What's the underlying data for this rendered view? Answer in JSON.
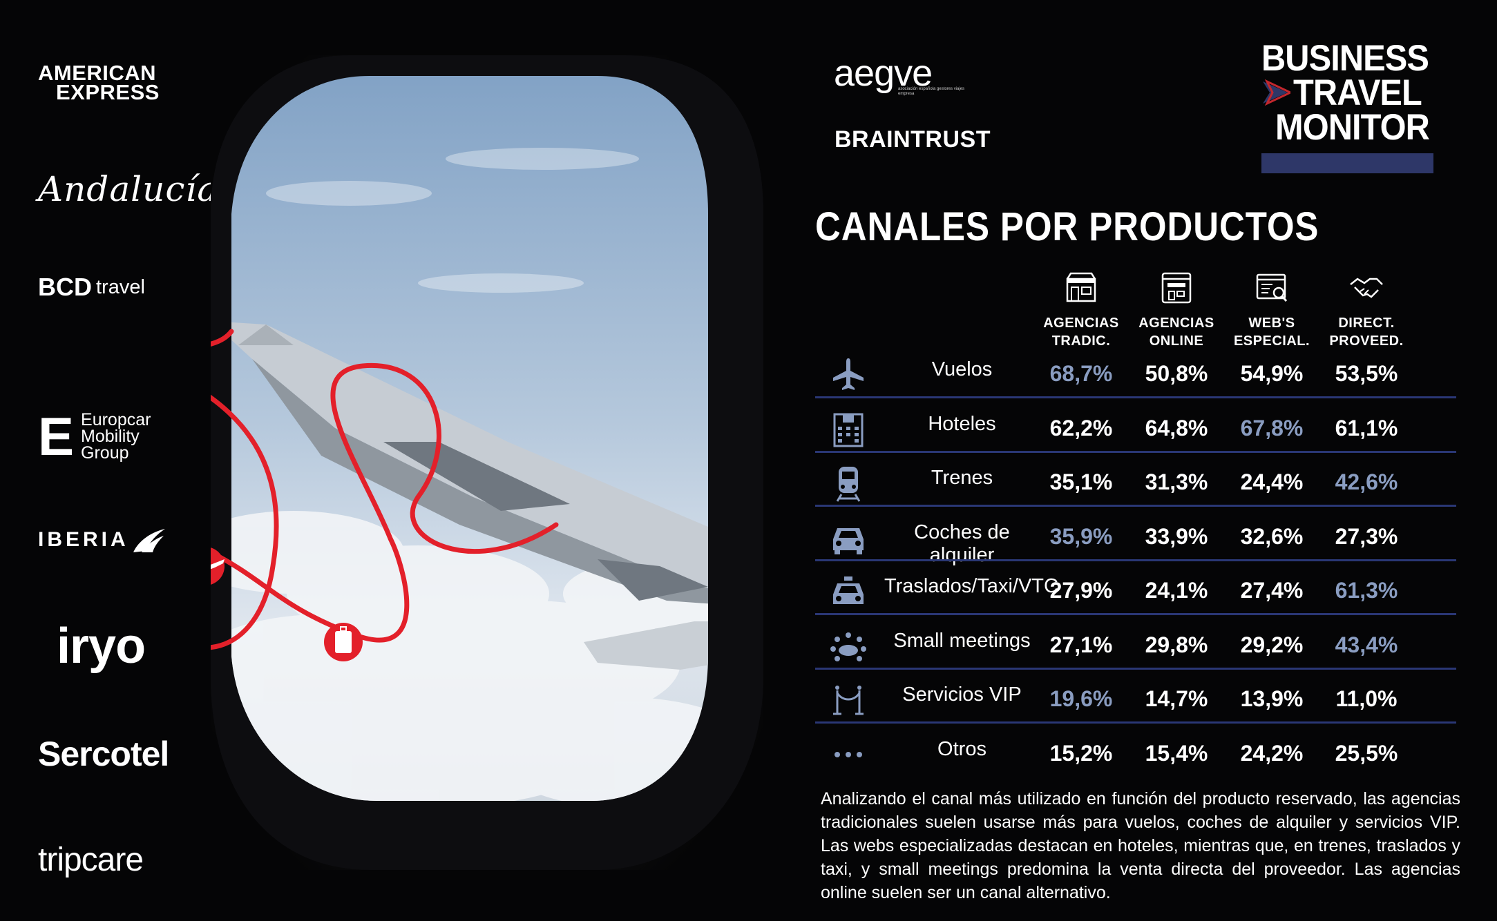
{
  "sponsors": {
    "amex_line1": "AMERICAN",
    "amex_line2": "EXPRESS",
    "andalucia": "Andalucía",
    "bcd": "BCD",
    "bcd_travel": "travel",
    "europcar_mark": "E",
    "europcar_line1": "Europcar",
    "europcar_line2": "Mobility",
    "europcar_line3": "Group",
    "iberia": "IBERIA",
    "iryo": "iryo",
    "sercotel": "Sercotel",
    "tripcare": "tripcare"
  },
  "header": {
    "aegve": "aegve",
    "aegve_sub": "asociación española gestores viajes empresa",
    "braintrust": "BRAINTRUST",
    "btm_line1": "BUSINESS",
    "btm_line2": "TRAVEL",
    "btm_line3": "MONITOR",
    "title": "CANALES POR PRODUCTOS"
  },
  "colors": {
    "highlight": "#8a9dc1",
    "accent_red": "#e3202a",
    "row_line": "#2a3775",
    "btm_bar": "#2e3768"
  },
  "chart_data": {
    "type": "table",
    "title": "CANALES POR PRODUCTOS",
    "columns": [
      {
        "line1": "AGENCIAS",
        "line2": "TRADIC.",
        "icon": "storefront-icon"
      },
      {
        "line1": "AGENCIAS",
        "line2": "ONLINE",
        "icon": "online-store-icon"
      },
      {
        "line1": "WEB'S",
        "line2": "ESPECIAL.",
        "icon": "web-search-icon"
      },
      {
        "line1": "DIRECT.",
        "line2": "PROVEED.",
        "icon": "handshake-icon"
      }
    ],
    "rows": [
      {
        "label": "Vuelos",
        "icon": "airplane-icon",
        "values": [
          "68,7%",
          "50,8%",
          "54,9%",
          "53,5%"
        ],
        "highlight": 0
      },
      {
        "label": "Hoteles",
        "icon": "hotel-icon",
        "values": [
          "62,2%",
          "64,8%",
          "67,8%",
          "61,1%"
        ],
        "highlight": 2
      },
      {
        "label": "Trenes",
        "icon": "train-icon",
        "values": [
          "35,1%",
          "31,3%",
          "24,4%",
          "42,6%"
        ],
        "highlight": 3
      },
      {
        "label": "Coches de alquiler",
        "icon": "car-icon",
        "values": [
          "35,9%",
          "33,9%",
          "32,6%",
          "27,3%"
        ],
        "highlight": 0
      },
      {
        "label": "Traslados/Taxi/VTC",
        "icon": "taxi-icon",
        "values": [
          "27,9%",
          "24,1%",
          "27,4%",
          "61,3%"
        ],
        "highlight": 3
      },
      {
        "label": "Small meetings",
        "icon": "meeting-icon",
        "values": [
          "27,1%",
          "29,8%",
          "29,2%",
          "43,4%"
        ],
        "highlight": 3
      },
      {
        "label": "Servicios VIP",
        "icon": "vip-stanchion-icon",
        "values": [
          "19,6%",
          "14,7%",
          "13,9%",
          "11,0%"
        ],
        "highlight": 0
      },
      {
        "label": "Otros",
        "icon": "more-dots-icon",
        "values": [
          "15,2%",
          "15,4%",
          "24,2%",
          "25,5%"
        ],
        "highlight": -1
      }
    ]
  },
  "description": "Analizando el canal más utilizado en función del producto reservado, las agencias tradicionales suelen usarse más para vuelos, coches de alquiler y servicios VIP. Las webs especializadas destacan en hoteles, mientras que, en trenes, traslados y taxi, y small meetings predomina la venta directa del proveedor. Las agencias online suelen ser un canal alternativo."
}
